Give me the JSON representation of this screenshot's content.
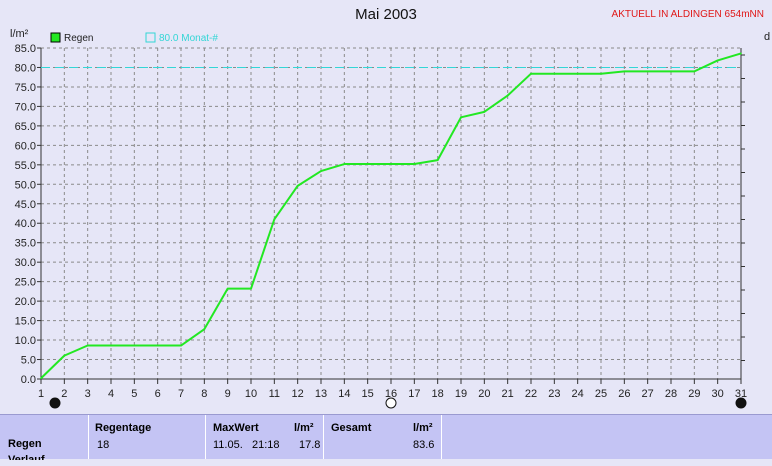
{
  "header": {
    "title": "Mai 2003",
    "station": "AKTUELL IN ALDINGEN 654mNN"
  },
  "colors": {
    "plot_bg": "#e6e6f7",
    "series": "#22e822",
    "target": "#33d6d6",
    "grid": "#8a8a8a",
    "panel": "#c4c4f4"
  },
  "chart_data": {
    "type": "line",
    "ylabel": "l/m²",
    "right_label": "d",
    "ylim": [
      0,
      85
    ],
    "xlim": [
      1,
      31
    ],
    "y_ticks": [
      "0.0",
      "5.0",
      "10.0",
      "15.0",
      "20.0",
      "25.0",
      "30.0",
      "35.0",
      "40.0",
      "45.0",
      "50.0",
      "55.0",
      "60.0",
      "65.0",
      "70.0",
      "75.0",
      "80.0",
      "85.0"
    ],
    "x_ticks": [
      "1",
      "2",
      "3",
      "4",
      "5",
      "6",
      "7",
      "8",
      "9",
      "10",
      "11",
      "12",
      "13",
      "14",
      "15",
      "16",
      "17",
      "18",
      "19",
      "20",
      "21",
      "22",
      "23",
      "24",
      "25",
      "26",
      "27",
      "28",
      "29",
      "30",
      "31"
    ],
    "legend": [
      {
        "label": "Regen",
        "style": "filled",
        "color": "#22e822"
      },
      {
        "label": "80.0 Monat-#",
        "style": "outline",
        "color": "#33d6d6"
      }
    ],
    "series": [
      {
        "name": "Regen",
        "x": [
          1,
          2,
          3,
          4,
          5,
          6,
          7,
          8,
          9,
          10,
          11,
          12,
          13,
          14,
          15,
          16,
          17,
          18,
          19,
          20,
          21,
          22,
          23,
          24,
          25,
          26,
          27,
          28,
          29,
          30,
          31
        ],
        "values": [
          0.2,
          6.0,
          8.6,
          8.6,
          8.6,
          8.6,
          8.6,
          12.8,
          23.2,
          23.2,
          41.0,
          49.6,
          53.4,
          55.2,
          55.2,
          55.2,
          55.2,
          56.2,
          67.2,
          68.6,
          72.8,
          78.4,
          78.4,
          78.4,
          78.4,
          79.0,
          79.0,
          79.0,
          79.0,
          81.8,
          83.6
        ]
      }
    ],
    "reference_line": {
      "label": "80.0 Monat-#",
      "value": 80.0
    },
    "moon_phases": [
      {
        "day": 1.6,
        "phase": "new"
      },
      {
        "day": 16,
        "phase": "full"
      },
      {
        "day": 31,
        "phase": "new"
      }
    ]
  },
  "summary": {
    "row_label": "Regen",
    "row_label_cut": "Verlauf",
    "regentage_header": "Regentage",
    "regentage_value": "18",
    "maxwert_header": "MaxWert",
    "unit": "l/m²",
    "maxwert_date": "11.05.",
    "maxwert_time": "21:18",
    "maxwert_value": "17.8",
    "gesamt_header": "Gesamt",
    "gesamt_value": "83.6"
  }
}
